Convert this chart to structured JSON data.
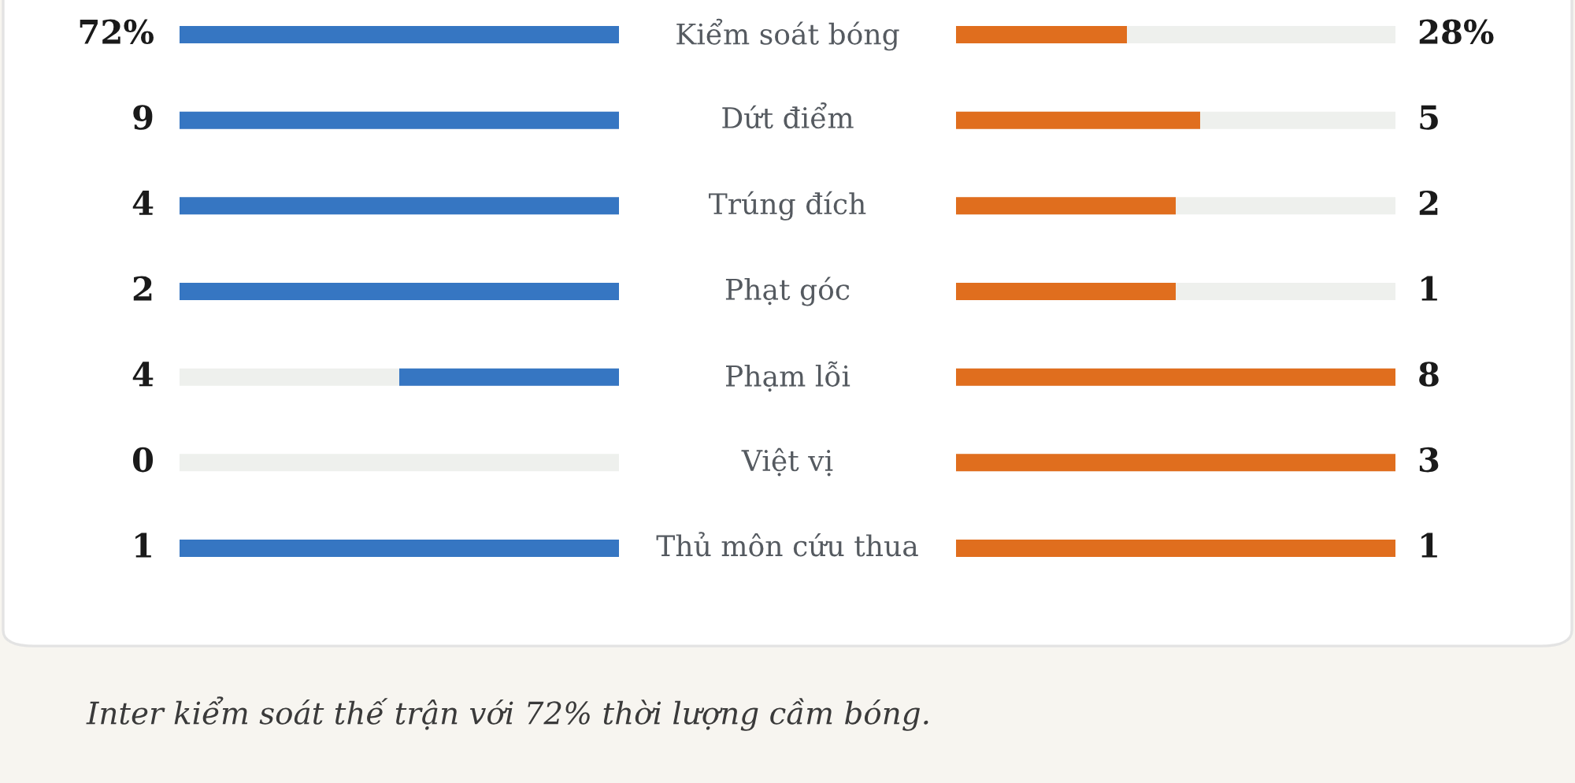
{
  "chart_data": {
    "type": "other",
    "categories": [
      "Kiểm soát bóng",
      "Dứt điểm",
      "Trúng đích",
      "Phạt góc",
      "Phạm lỗi",
      "Việt vị",
      "Thủ môn cứu thua"
    ],
    "series": [
      {
        "color": "#3676c2",
        "values": [
          72,
          9,
          4,
          2,
          4,
          0,
          1
        ],
        "value_labels": [
          "72%",
          "9",
          "4",
          "2",
          "4",
          "0",
          "1"
        ]
      },
      {
        "color": "#e06e1e",
        "values": [
          28,
          5,
          2,
          1,
          8,
          3,
          1
        ],
        "value_labels": [
          "28%",
          "5",
          "2",
          "1",
          "8",
          "3",
          "1"
        ]
      }
    ],
    "annotations": [
      "Inter kiểm soát thế trận với 72% thời lượng cầm bóng."
    ]
  }
}
